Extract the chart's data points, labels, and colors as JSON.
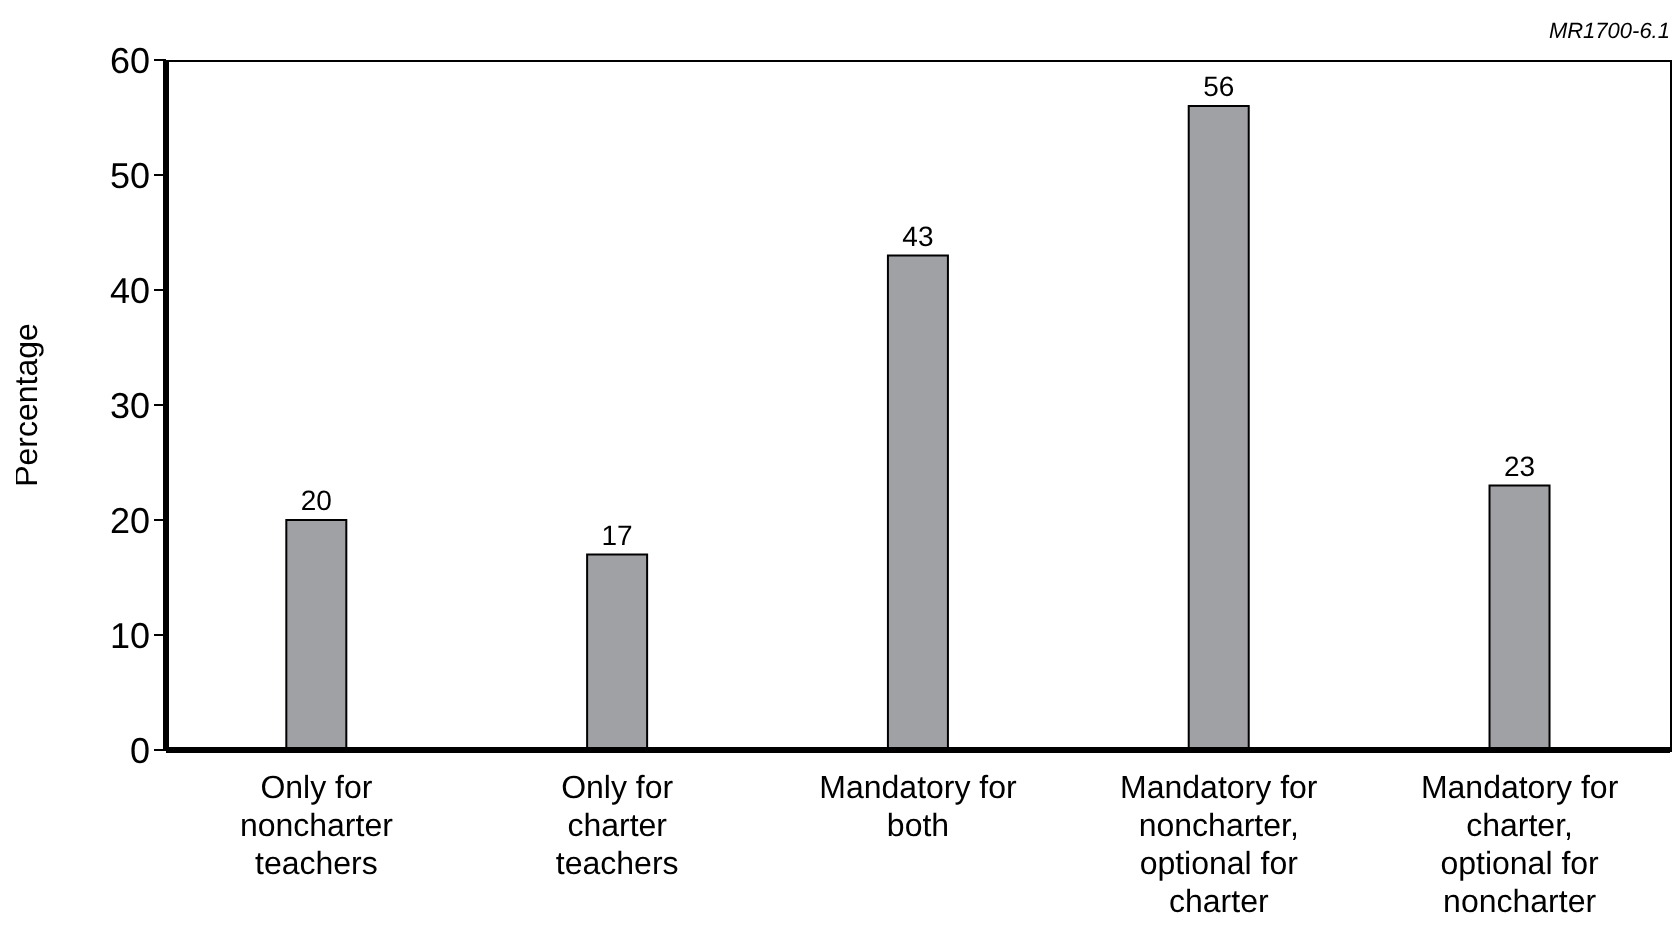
{
  "chart_data": {
    "type": "bar",
    "ylabel": "Percentage",
    "categories": [
      "Only for noncharter teachers",
      "Only for charter teachers",
      "Mandatory for both",
      "Mandatory for noncharter, optional for charter",
      "Mandatory for charter, optional for noncharter"
    ],
    "values": [
      20,
      17,
      43,
      56,
      23
    ],
    "color": "#a0a1a4",
    "data_labels": true,
    "ylim": [
      0,
      60
    ],
    "yticks": [
      0,
      10,
      20,
      30,
      40,
      50,
      60
    ],
    "grid": false,
    "legend": false,
    "annotations": [
      "MR1700-6.1"
    ]
  }
}
